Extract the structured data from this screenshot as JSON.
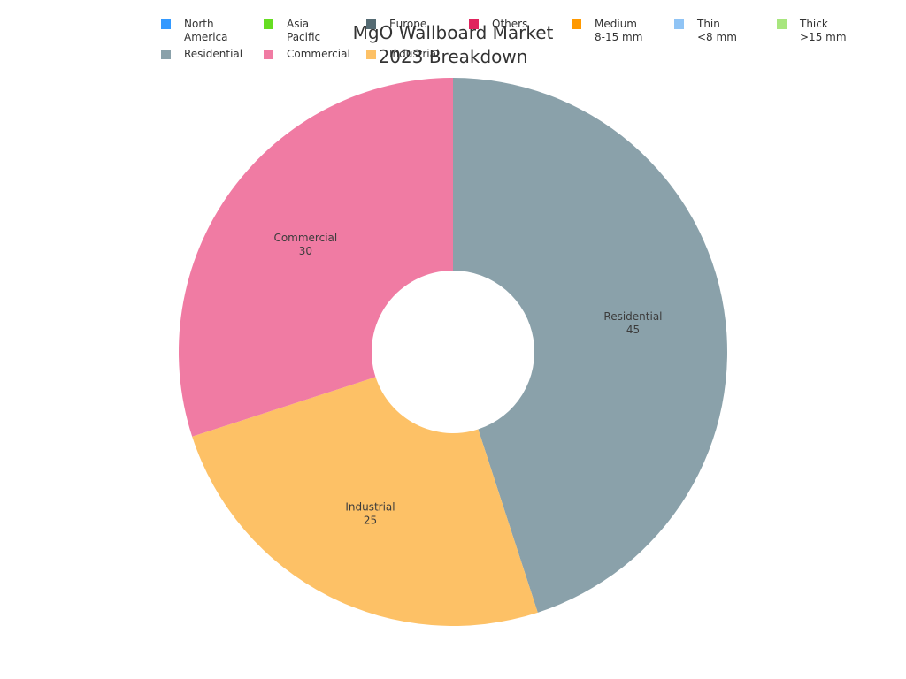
{
  "chart_data": {
    "type": "pie",
    "title_lines": [
      "MgO Wallboard Market",
      "2023 Breakdown"
    ],
    "legend": [
      {
        "label": "North\nAmerica",
        "color": "#3399ff"
      },
      {
        "label": "Asia\nPacific",
        "color": "#66dd22"
      },
      {
        "label": "Europe",
        "color": "#556b73"
      },
      {
        "label": "Others",
        "color": "#e0245e"
      },
      {
        "label": "Medium\n8-15 mm",
        "color": "#ff9900"
      },
      {
        "label": "Thin\n<8 mm",
        "color": "#90c4f5"
      },
      {
        "label": "Thick\n>15 mm",
        "color": "#a8e67e"
      },
      {
        "label": "Residential",
        "color": "#8aa1aa"
      },
      {
        "label": "Commercial",
        "color": "#f07ba3"
      },
      {
        "label": "Industrial",
        "color": "#fdc166"
      }
    ],
    "slices": [
      {
        "label": "Residential",
        "value": 45,
        "color": "#8aa1aa"
      },
      {
        "label": "Industrial",
        "value": 25,
        "color": "#fdc166"
      },
      {
        "label": "Commercial",
        "value": 30,
        "color": "#f07ba3"
      }
    ]
  }
}
